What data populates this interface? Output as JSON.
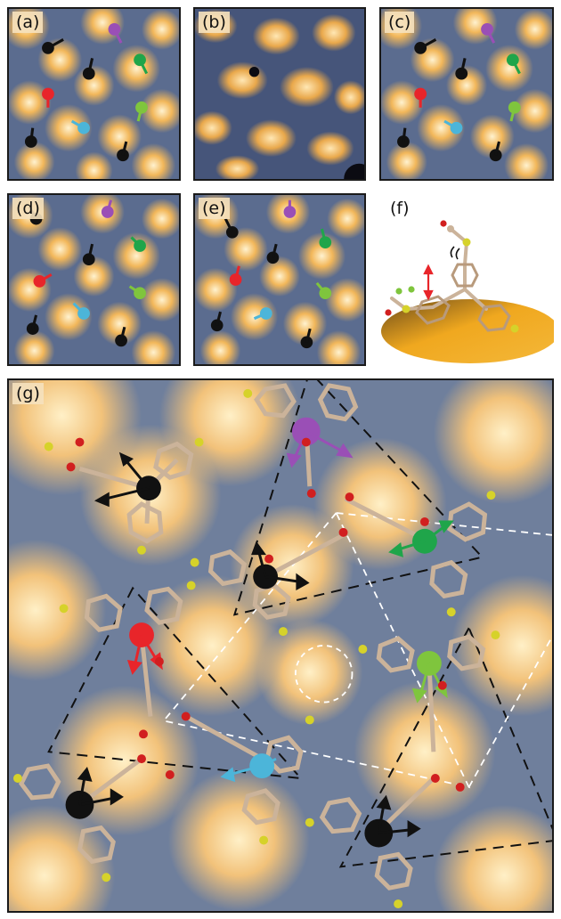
{
  "panels": {
    "a": {
      "label": "(a)"
    },
    "b": {
      "label": "(b)"
    },
    "c": {
      "label": "(c)"
    },
    "d": {
      "label": "(d)"
    },
    "e": {
      "label": "(e)"
    },
    "f": {
      "label": "(f)"
    },
    "g": {
      "label": "(g)"
    }
  },
  "colors": {
    "surface_bright": "#f2b75a",
    "surface_dark": "#3f4f78",
    "surface_mid": "#8b9ab0",
    "rotor_black": "#111111",
    "rotor_red": "#e8252a",
    "rotor_green": "#1fa54a",
    "rotor_lightgreen": "#7fc53d",
    "rotor_purple": "#9a4fb6",
    "rotor_cyan": "#4cb5d9",
    "molecule_tan": "#cbb39a",
    "sulfur_yellow": "#d6d22a",
    "oxygen_red": "#d11f1f",
    "substrate_gold": "#f0a81f"
  },
  "icons": [
    "rotor-arrow-icon",
    "molecule-model-icon",
    "lattice-triangle-icon"
  ]
}
